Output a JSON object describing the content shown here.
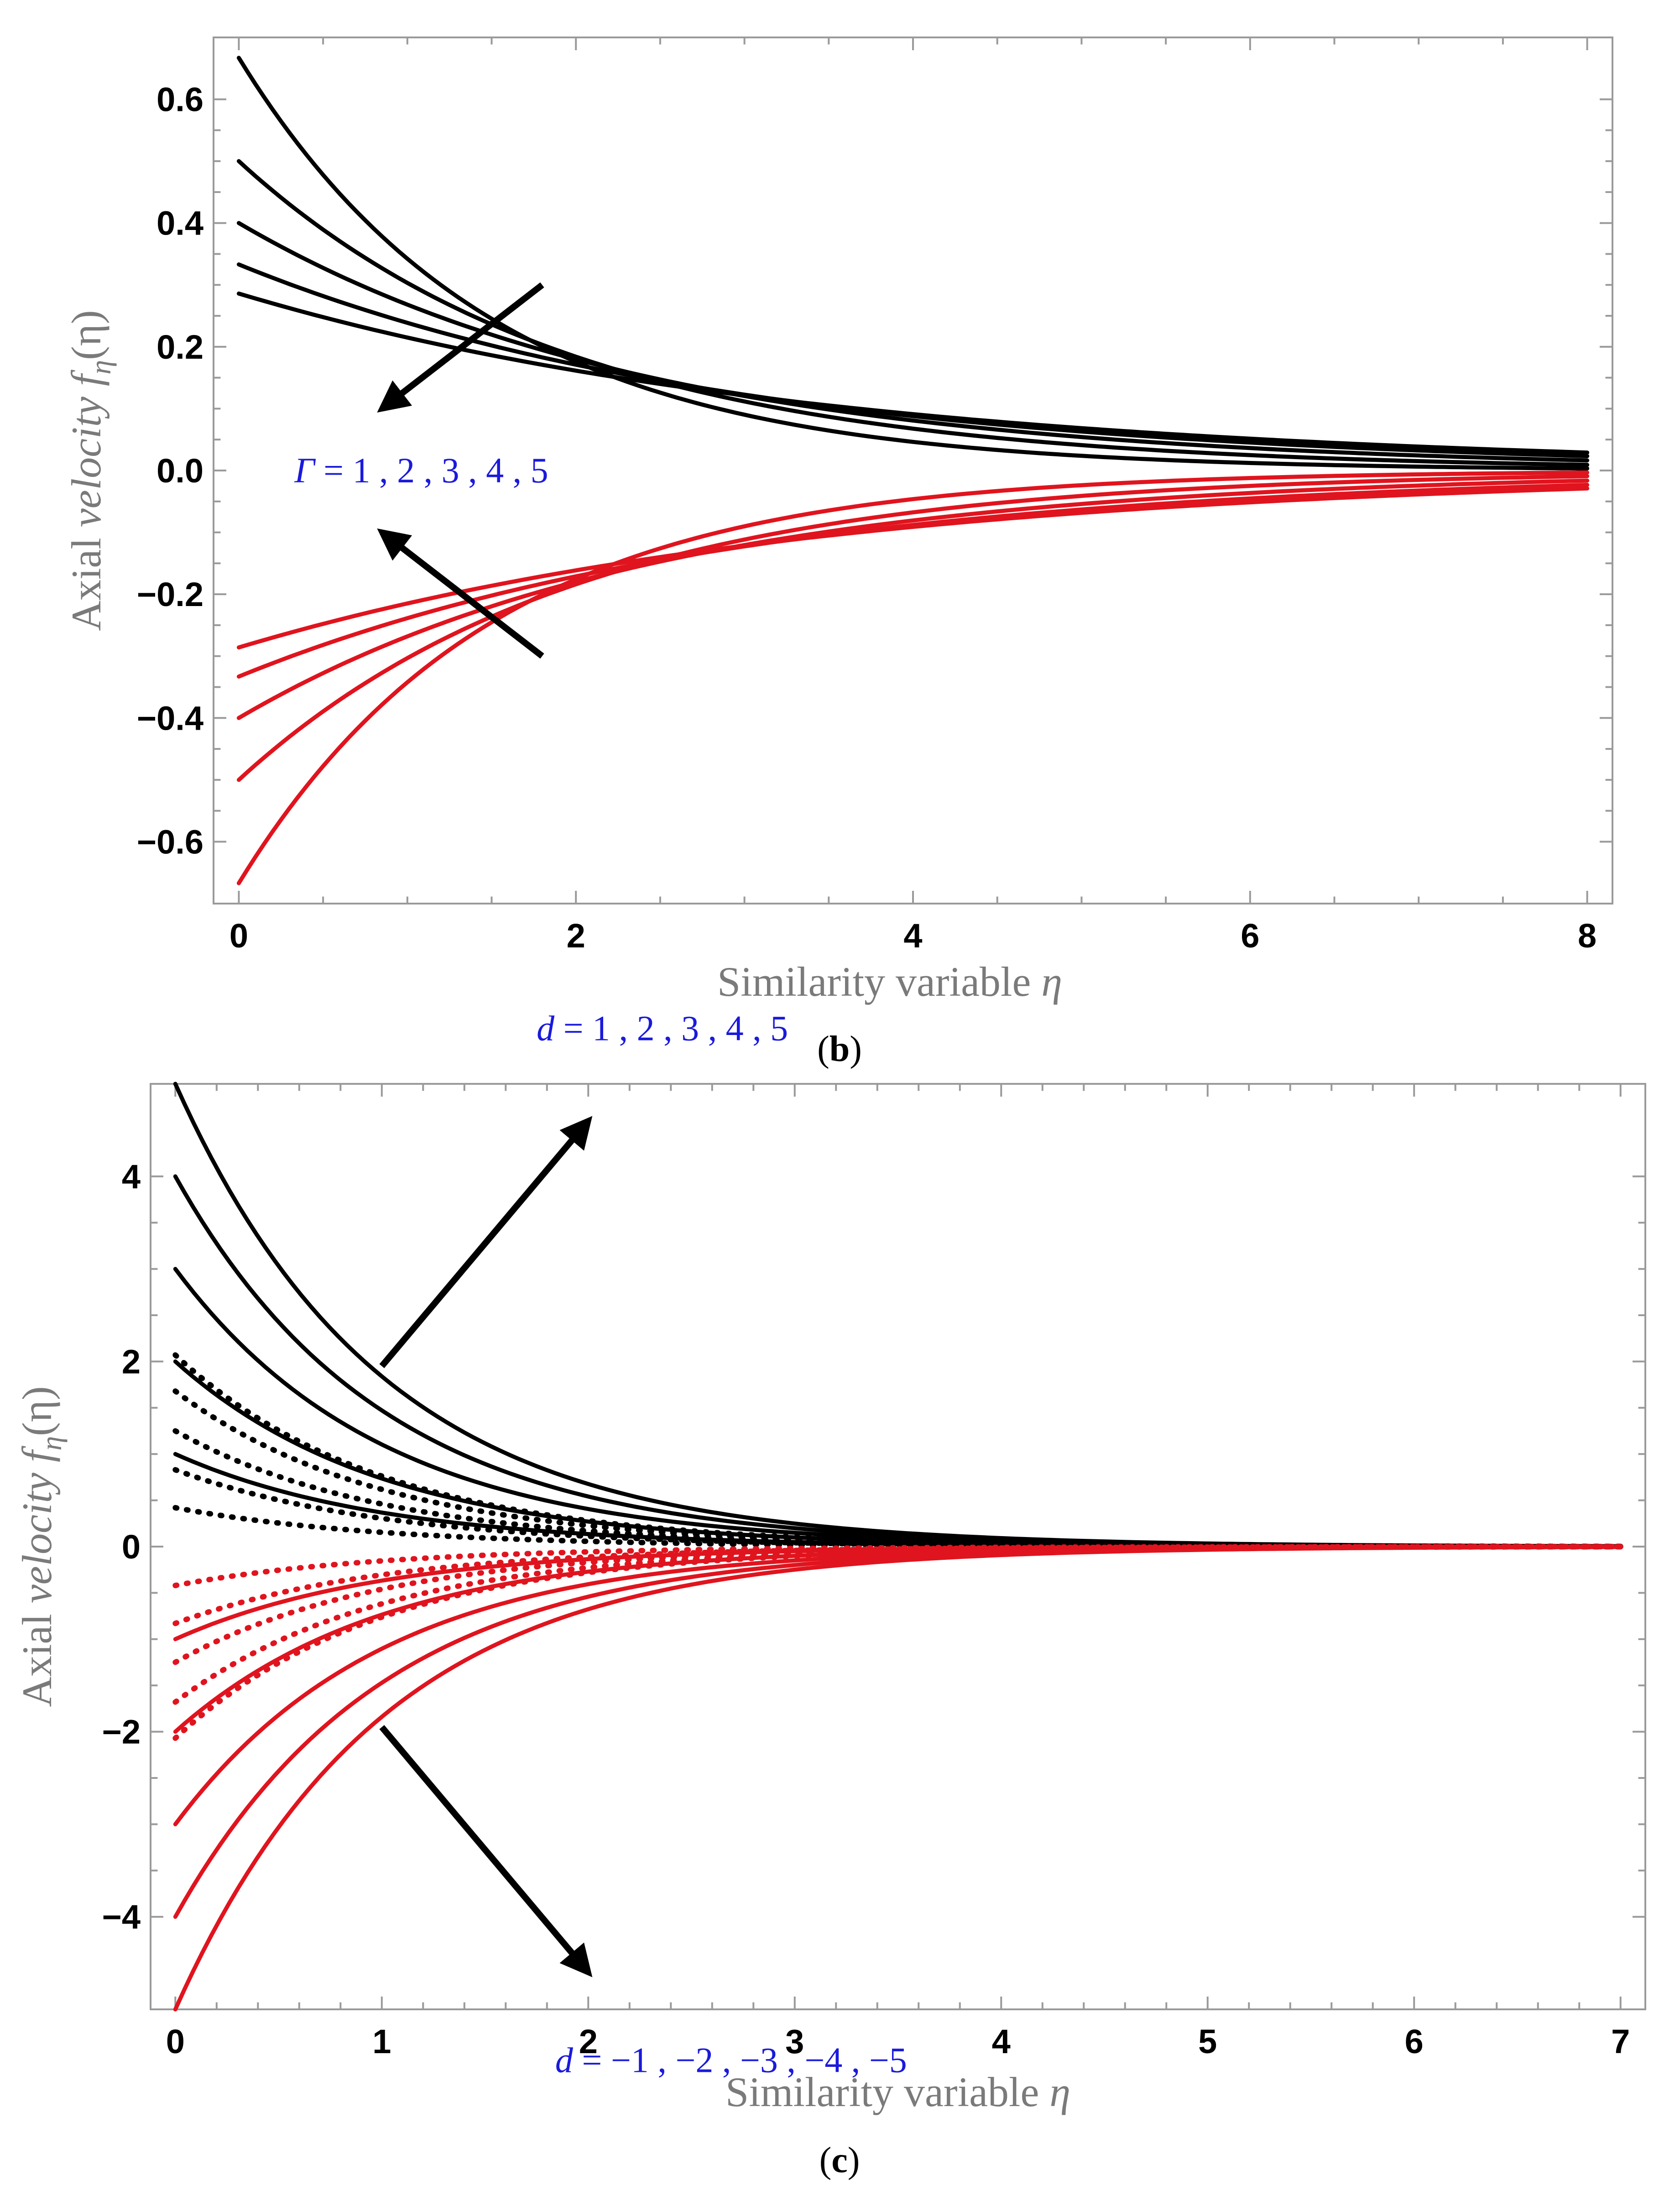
{
  "chart_data": [
    {
      "id": "b",
      "type": "line",
      "caption": "(b)",
      "caption_letter": "b",
      "xlabel_text": "Similarity variable ",
      "xlabel_symbol": "η",
      "ylabel_text": "Axial ",
      "ylabel_italic": "velocity f",
      "ylabel_sub": "η",
      "ylabel_tail": "(η)",
      "xlim": [
        -0.15,
        8.15
      ],
      "ylim": [
        -0.7,
        0.7
      ],
      "xticks": [
        0,
        2,
        4,
        6,
        8
      ],
      "xtick_labels": [
        "0",
        "2",
        "4",
        "6",
        "8"
      ],
      "yticks": [
        -0.6,
        -0.4,
        -0.2,
        0.0,
        0.2,
        0.4,
        0.6
      ],
      "ytick_labels": [
        "−0.6",
        "−0.4",
        "−0.2",
        "0.0",
        "0.2",
        "0.4",
        "0.6"
      ],
      "grid": false,
      "x_domain": [
        0,
        8
      ],
      "series": [
        {
          "name": "Γ=1 (upper)",
          "color": "#000000",
          "style": "solid",
          "f0": 0.667,
          "decay": 0.667
        },
        {
          "name": "Γ=2 (upper)",
          "color": "#000000",
          "style": "solid",
          "f0": 0.5,
          "decay": 0.5
        },
        {
          "name": "Γ=3 (upper)",
          "color": "#000000",
          "style": "solid",
          "f0": 0.4,
          "decay": 0.4
        },
        {
          "name": "Γ=4 (upper)",
          "color": "#000000",
          "style": "solid",
          "f0": 0.333,
          "decay": 0.333
        },
        {
          "name": "Γ=5 (upper)",
          "color": "#000000",
          "style": "solid",
          "f0": 0.286,
          "decay": 0.286
        },
        {
          "name": "Γ=1 (lower)",
          "color": "#e0141e",
          "style": "solid",
          "f0": -0.667,
          "decay": 0.667
        },
        {
          "name": "Γ=2 (lower)",
          "color": "#e0141e",
          "style": "solid",
          "f0": -0.5,
          "decay": 0.5
        },
        {
          "name": "Γ=3 (lower)",
          "color": "#e0141e",
          "style": "solid",
          "f0": -0.4,
          "decay": 0.4
        },
        {
          "name": "Γ=4 (lower)",
          "color": "#e0141e",
          "style": "solid",
          "f0": -0.333,
          "decay": 0.333
        },
        {
          "name": "Γ=5 (lower)",
          "color": "#e0141e",
          "style": "solid",
          "f0": -0.286,
          "decay": 0.286
        }
      ],
      "annotations": [
        {
          "id": "gamma-label",
          "symbol": "Γ",
          "text": " = 1 , 2 , 3 , 4 , 5",
          "x": 0.33,
          "y": 0.0
        }
      ],
      "arrows": [
        {
          "from": [
            1.8,
            0.3
          ],
          "to": [
            0.85,
            0.1
          ]
        },
        {
          "from": [
            1.8,
            -0.3
          ],
          "to": [
            0.85,
            -0.1
          ]
        }
      ]
    },
    {
      "id": "c",
      "type": "line",
      "caption": "(c)",
      "caption_letter": "c",
      "xlabel_text": "Similarity variable ",
      "xlabel_symbol": "η",
      "ylabel_text": "Axial ",
      "ylabel_italic": "velocity f",
      "ylabel_sub": "η",
      "ylabel_tail": "(η)",
      "xlim": [
        -0.12,
        7.12
      ],
      "ylim": [
        -5.0,
        5.0
      ],
      "xticks": [
        0,
        1,
        2,
        3,
        4,
        5,
        6,
        7
      ],
      "xtick_labels": [
        "0",
        "1",
        "2",
        "3",
        "4",
        "5",
        "6",
        "7"
      ],
      "yticks": [
        -4,
        -2,
        0,
        2,
        4
      ],
      "ytick_labels": [
        "−4",
        "−2",
        "0",
        "2",
        "4"
      ],
      "grid": false,
      "x_domain": [
        0,
        7
      ],
      "series": [
        {
          "name": "d=5 (upper solid)",
          "color": "#000000",
          "style": "solid",
          "f0": 5.0,
          "decay": 1.0
        },
        {
          "name": "d=4 (upper solid)",
          "color": "#000000",
          "style": "solid",
          "f0": 4.0,
          "decay": 1.0
        },
        {
          "name": "d=3 (upper solid)",
          "color": "#000000",
          "style": "solid",
          "f0": 3.0,
          "decay": 1.0
        },
        {
          "name": "d=2 (upper solid)",
          "color": "#000000",
          "style": "solid",
          "f0": 2.0,
          "decay": 1.0
        },
        {
          "name": "d=1 (upper solid)",
          "color": "#000000",
          "style": "solid",
          "f0": 1.0,
          "decay": 1.0
        },
        {
          "name": "d=-1 (upper dotted)",
          "color": "#000000",
          "style": "dotted",
          "f0": 2.07,
          "decay": 1.0
        },
        {
          "name": "d=-2 (upper dotted)",
          "color": "#000000",
          "style": "dotted",
          "f0": 1.68,
          "decay": 1.0
        },
        {
          "name": "d=-3 (upper dotted)",
          "color": "#000000",
          "style": "dotted",
          "f0": 1.25,
          "decay": 1.0
        },
        {
          "name": "d=-4 (upper dotted)",
          "color": "#000000",
          "style": "dotted",
          "f0": 0.83,
          "decay": 1.0
        },
        {
          "name": "d=-5 (upper dotted)",
          "color": "#000000",
          "style": "dotted",
          "f0": 0.42,
          "decay": 1.0
        },
        {
          "name": "d=5 (lower solid)",
          "color": "#e0141e",
          "style": "solid",
          "f0": -5.0,
          "decay": 1.0
        },
        {
          "name": "d=4 (lower solid)",
          "color": "#e0141e",
          "style": "solid",
          "f0": -4.0,
          "decay": 1.0
        },
        {
          "name": "d=3 (lower solid)",
          "color": "#e0141e",
          "style": "solid",
          "f0": -3.0,
          "decay": 1.0
        },
        {
          "name": "d=2 (lower solid)",
          "color": "#e0141e",
          "style": "solid",
          "f0": -2.0,
          "decay": 1.0
        },
        {
          "name": "d=1 (lower solid)",
          "color": "#e0141e",
          "style": "solid",
          "f0": -1.0,
          "decay": 1.0
        },
        {
          "name": "d=-1 (lower dotted)",
          "color": "#e0141e",
          "style": "dotted",
          "f0": -2.07,
          "decay": 1.0
        },
        {
          "name": "d=-2 (lower dotted)",
          "color": "#e0141e",
          "style": "dotted",
          "f0": -1.68,
          "decay": 1.0
        },
        {
          "name": "d=-3 (lower dotted)",
          "color": "#e0141e",
          "style": "dotted",
          "f0": -1.25,
          "decay": 1.0
        },
        {
          "name": "d=-4 (lower dotted)",
          "color": "#e0141e",
          "style": "dotted",
          "f0": -0.83,
          "decay": 1.0
        },
        {
          "name": "d=-5 (lower dotted)",
          "color": "#e0141e",
          "style": "dotted",
          "f0": -0.42,
          "decay": 1.0
        }
      ],
      "annotations": [
        {
          "id": "d-pos-label",
          "symbol": "d",
          "text": " = 1 , 2 , 3 , 4 , 5",
          "x": 1.75,
          "y": 5.6
        },
        {
          "id": "d-neg-label",
          "symbol": "d",
          "text": " = −1 , −2 , −3 , −4 , −5",
          "x": 1.84,
          "y": -5.55
        }
      ],
      "arrows": [
        {
          "from": [
            1.0,
            1.95
          ],
          "to": [
            2.0,
            4.6
          ]
        },
        {
          "from": [
            1.0,
            -1.95
          ],
          "to": [
            2.0,
            -4.6
          ]
        }
      ]
    }
  ]
}
